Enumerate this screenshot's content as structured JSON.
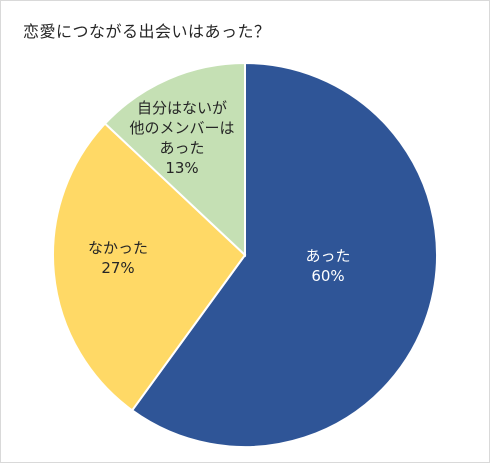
{
  "chart_data": {
    "type": "pie",
    "title": "恋愛につながる出会いはあった？",
    "slices": [
      {
        "label_lines": [
          "あった",
          "60%"
        ],
        "value": 60,
        "color": "#2f5597",
        "label_color": "#ffffff"
      },
      {
        "label_lines": [
          "なかった",
          "27%"
        ],
        "value": 27,
        "color": "#ffd966",
        "label_color": "#262626"
      },
      {
        "label_lines": [
          "自分はないが",
          "他のメンバーは",
          "あった",
          "13%"
        ],
        "value": 13,
        "color": "#c5e0b4",
        "label_color": "#262626"
      }
    ]
  }
}
